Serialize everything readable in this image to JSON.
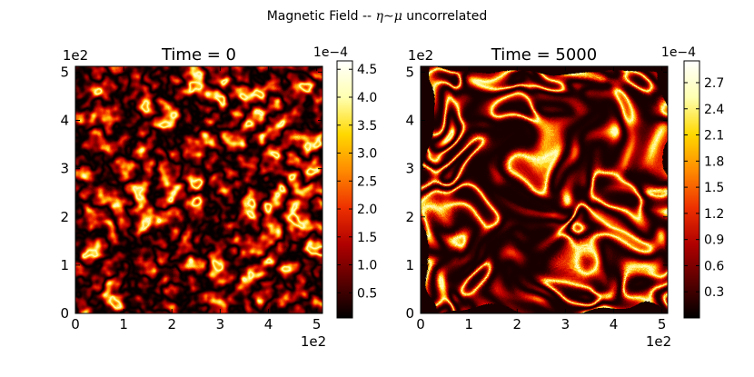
{
  "figure": {
    "suptitle_prefix": "Magnetic Field -- ",
    "suptitle_eta": "η",
    "suptitle_tilde": "∼",
    "suptitle_mu": "μ",
    "suptitle_suffix": " uncorrelated"
  },
  "colormap": [
    "#000000",
    "#5a0000",
    "#b00000",
    "#ee3000",
    "#ff8a00",
    "#ffd800",
    "#ffffb0",
    "#ffffff"
  ],
  "chart_data": [
    {
      "type": "heatmap",
      "title": "Time = 0",
      "xlim": [
        0,
        512
      ],
      "ylim": [
        0,
        512
      ],
      "x_ticks": [
        "0",
        "1",
        "2",
        "3",
        "4",
        "5"
      ],
      "y_ticks": [
        "0",
        "1",
        "2",
        "3",
        "4",
        "5"
      ],
      "x_offset_label": "1e2",
      "y_offset_label": "1e2",
      "colorbar": {
        "min": 0.05,
        "max": 4.65,
        "ticks": [
          "0.5",
          "1.0",
          "1.5",
          "2.0",
          "2.5",
          "3.0",
          "3.5",
          "4.0",
          "4.5"
        ],
        "tick_values": [
          0.5,
          1.0,
          1.5,
          2.0,
          2.5,
          3.0,
          3.5,
          4.0,
          4.5
        ],
        "offset_label": "1e−4"
      },
      "field": "small-scale turbulent"
    },
    {
      "type": "heatmap",
      "title": "Time = 5000",
      "xlim": [
        0,
        512
      ],
      "ylim": [
        0,
        512
      ],
      "x_ticks": [
        "0",
        "1",
        "2",
        "3",
        "4",
        "5"
      ],
      "y_ticks": [
        "0",
        "1",
        "2",
        "3",
        "4",
        "5"
      ],
      "x_offset_label": "1e2",
      "y_offset_label": "1e2",
      "colorbar": {
        "min": 0.0,
        "max": 2.95,
        "ticks": [
          "0.3",
          "0.6",
          "0.9",
          "1.2",
          "1.5",
          "1.8",
          "2.1",
          "2.4",
          "2.7"
        ],
        "tick_values": [
          0.3,
          0.6,
          0.9,
          1.2,
          1.5,
          1.8,
          2.1,
          2.4,
          2.7
        ],
        "offset_label": "1e−4"
      },
      "field": "large-scale swirling filaments"
    }
  ]
}
